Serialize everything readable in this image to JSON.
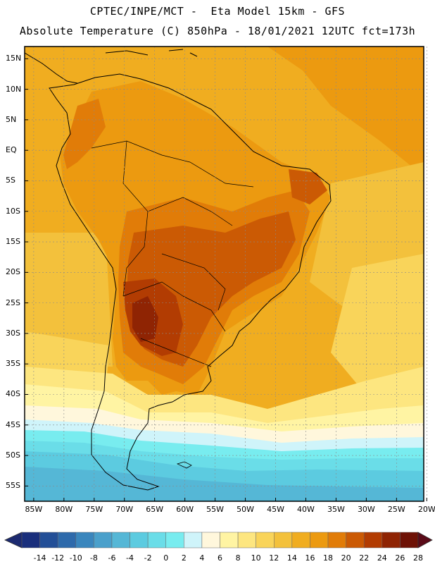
{
  "header": {
    "line1": "CPTEC/INPE/MCT -  Eta Model 15km - GFS",
    "line2": "Absolute Temperature (C) 850hPa - 18/01/2021 12UTC fct=173h"
  },
  "map": {
    "lat_labels": [
      "15N",
      "10N",
      "5N",
      "EQ",
      "5S",
      "10S",
      "15S",
      "20S",
      "25S",
      "30S",
      "35S",
      "40S",
      "45S",
      "50S",
      "55S"
    ],
    "lat_values": [
      15,
      10,
      5,
      0,
      -5,
      -10,
      -15,
      -20,
      -25,
      -30,
      -35,
      -40,
      -45,
      -50,
      -55
    ],
    "lon_labels": [
      "85W",
      "80W",
      "75W",
      "70W",
      "65W",
      "60W",
      "55W",
      "50W",
      "45W",
      "40W",
      "35W",
      "30W",
      "25W",
      "20W"
    ],
    "lon_values": [
      -85,
      -80,
      -75,
      -70,
      -65,
      -60,
      -55,
      -50,
      -45,
      -40,
      -35,
      -30,
      -25,
      -20
    ],
    "lat_range": [
      -57.5,
      17
    ],
    "lon_range": [
      -86.5,
      -20.5
    ]
  },
  "colorbar": {
    "labels": [
      "-14",
      "-12",
      "-10",
      "-8",
      "-6",
      "-4",
      "-2",
      "0",
      "2",
      "4",
      "6",
      "8",
      "10",
      "12",
      "14",
      "16",
      "18",
      "20",
      "22",
      "24",
      "26",
      "28"
    ],
    "colors": [
      "#1a2f7c",
      "#234f97",
      "#2e6aab",
      "#3a86bd",
      "#4aa0cb",
      "#55b7d6",
      "#5ccbe0",
      "#6adde8",
      "#78ecef",
      "#cff4fa",
      "#fff7dc",
      "#fff4a3",
      "#fde680",
      "#f9d45a",
      "#f3c13c",
      "#f0ad20",
      "#ec9a10",
      "#e17c08",
      "#cb5a04",
      "#b23c02",
      "#8f2403",
      "#6e1206"
    ],
    "under_color": "#1c2a70",
    "over_color": "#5a0a18"
  }
}
